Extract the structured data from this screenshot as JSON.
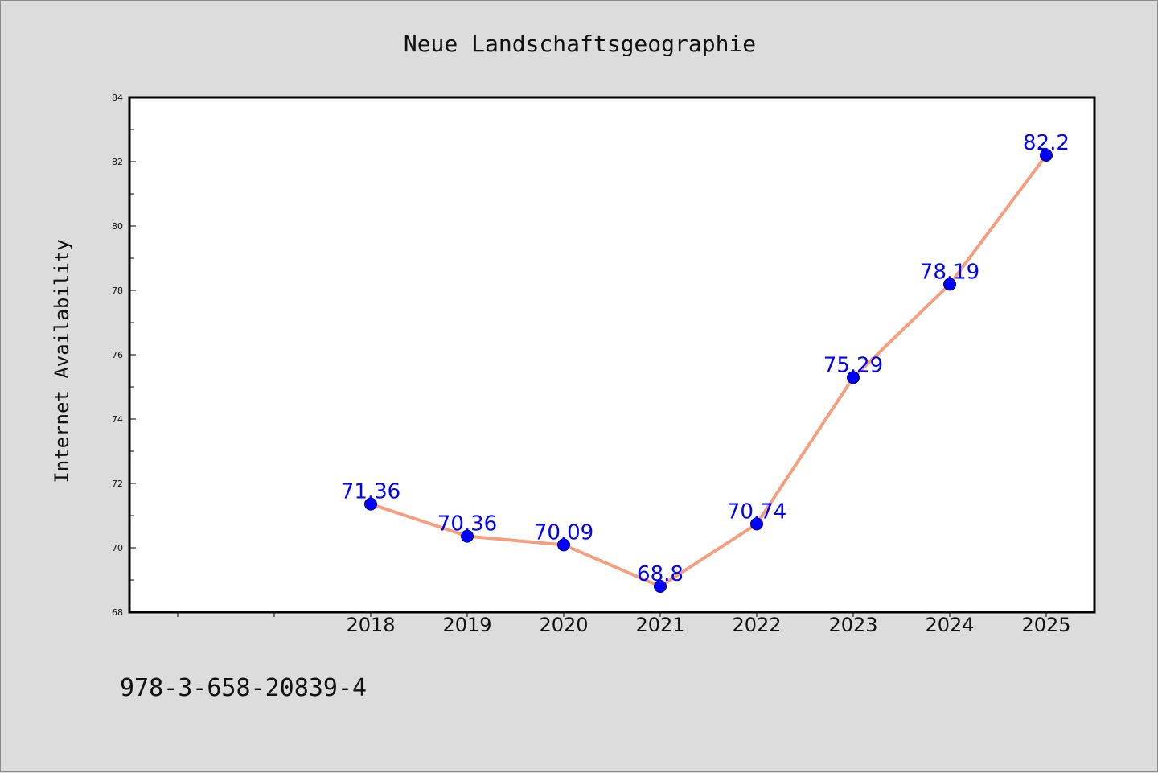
{
  "chart_data": {
    "type": "line",
    "title": "Neue Landschaftsgeographie",
    "xlabel": "",
    "ylabel": "Internet Availability",
    "categories": [
      "",
      "",
      "2018",
      "2019",
      "2020",
      "2021",
      "2022",
      "2023",
      "2024",
      "2025"
    ],
    "series": [
      {
        "x": [
          "2018",
          "2019",
          "2020",
          "2021",
          "2022",
          "2023",
          "2024",
          "2025"
        ],
        "values": [
          71.36,
          70.36,
          70.09,
          68.8,
          70.74,
          75.29,
          78.19,
          82.2
        ],
        "labels": [
          "71.36",
          "70.36",
          "70.09",
          "68.8",
          "70.74",
          "75.29",
          "78.19",
          "82.2"
        ],
        "line_color": "#f4a080",
        "marker_color": "#0000ff",
        "label_color": "#0000ff"
      }
    ],
    "ylim": [
      68,
      84
    ],
    "yticks": [
      "68",
      "70",
      "72",
      "74",
      "76",
      "78",
      "80",
      "82",
      "84"
    ],
    "grid": false,
    "legend": "none"
  },
  "footer": {
    "isbn": "978-3-658-20839-4"
  },
  "colors": {
    "background": "#dcdcdc",
    "plot_background": "#ffffff",
    "axis": "#000000"
  }
}
